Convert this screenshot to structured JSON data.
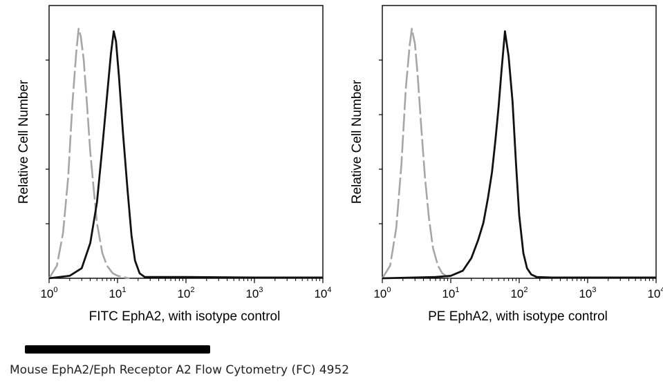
{
  "caption": "Mouse EphA2/Eph Receptor A2 Flow Cytometry (FC) 4952",
  "colors": {
    "isotype": "#a6a6a6",
    "stained": "#111111",
    "axis": "#000000"
  },
  "chart_data": [
    {
      "type": "line",
      "xscale": "log",
      "xlim": [
        1,
        10000
      ],
      "ylim": [
        0,
        100
      ],
      "xticks": [
        {
          "base": "10",
          "exp": "0"
        },
        {
          "base": "10",
          "exp": "1"
        },
        {
          "base": "10",
          "exp": "2"
        },
        {
          "base": "10",
          "exp": "3"
        },
        {
          "base": "10",
          "exp": "4"
        }
      ],
      "xlabel": "FITC EphA2, with isotype control",
      "ylabel": "Relative Cell Number",
      "grid": false,
      "series": [
        {
          "role": "isotype control",
          "style": "dashed-gray",
          "x": [
            1,
            1.3,
            1.6,
            1.9,
            2.2,
            2.5,
            2.7,
            2.9,
            3.2,
            3.6,
            4.0,
            4.5,
            5.0,
            6.0,
            7.0,
            8.5,
            10,
            12,
            15
          ],
          "y": [
            0,
            5,
            18,
            40,
            70,
            90,
            99,
            96,
            87,
            68,
            50,
            35,
            22,
            10,
            5,
            2,
            1,
            0.5,
            0
          ]
        },
        {
          "role": "EphA2 stained",
          "style": "solid-black",
          "x": [
            1,
            2,
            3,
            4,
            5,
            6,
            7,
            8,
            8.8,
            9.5,
            10.5,
            12,
            14,
            16,
            18,
            21,
            25,
            50,
            100,
            1000,
            10000
          ],
          "y": [
            0,
            1,
            4,
            14,
            30,
            52,
            72,
            89,
            98,
            94,
            80,
            58,
            35,
            17,
            7,
            2,
            0.5,
            0.5,
            0.5,
            0.3,
            0.3
          ]
        }
      ]
    },
    {
      "type": "line",
      "xscale": "log",
      "xlim": [
        1,
        10000
      ],
      "ylim": [
        0,
        100
      ],
      "xticks": [
        {
          "base": "10",
          "exp": "0"
        },
        {
          "base": "10",
          "exp": "1"
        },
        {
          "base": "10",
          "exp": "2"
        },
        {
          "base": "10",
          "exp": "3"
        },
        {
          "base": "10",
          "exp": "4"
        }
      ],
      "xlabel": "PE EphA2, with isotype control",
      "ylabel": "Relative Cell Number",
      "grid": false,
      "series": [
        {
          "role": "isotype control",
          "style": "dashed-gray",
          "x": [
            1,
            1.3,
            1.6,
            1.9,
            2.2,
            2.5,
            2.7,
            3.0,
            3.3,
            3.7,
            4.2,
            4.8,
            5.5,
            6.5,
            7.5,
            9,
            11
          ],
          "y": [
            0,
            5,
            20,
            45,
            75,
            92,
            99,
            93,
            80,
            60,
            40,
            24,
            12,
            5,
            2,
            0.5,
            0
          ]
        },
        {
          "role": "EphA2 stained",
          "style": "solid-black",
          "x": [
            1,
            6,
            10,
            15,
            20,
            25,
            30,
            35,
            40,
            45,
            50,
            55,
            62,
            70,
            80,
            90,
            100,
            115,
            130,
            150,
            180,
            300,
            10000
          ],
          "y": [
            0,
            0.5,
            1,
            3,
            8,
            15,
            22,
            32,
            42,
            55,
            68,
            82,
            98,
            88,
            70,
            45,
            25,
            10,
            4,
            1.5,
            0.5,
            0.3,
            0.3
          ]
        }
      ]
    }
  ]
}
